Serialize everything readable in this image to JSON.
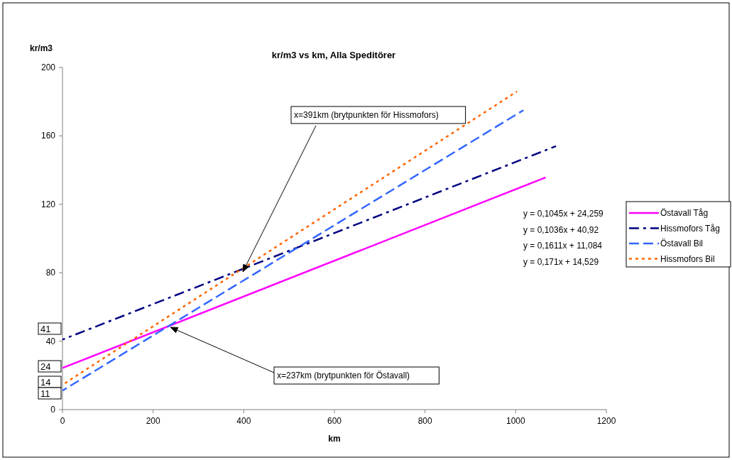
{
  "chart_data": {
    "type": "line",
    "title": "kr/m3 vs km, Alla Speditörer",
    "xlabel": "km",
    "ylabel": "kr/m3",
    "xlim": [
      0,
      1200
    ],
    "xticks": [
      0,
      200,
      400,
      600,
      800,
      1000,
      1200
    ],
    "ylim": [
      0,
      200
    ],
    "yticks": [
      0,
      40,
      80,
      120,
      160,
      200
    ],
    "grid": false,
    "legend": "right",
    "marker": "none",
    "series": [
      {
        "name": "Östavall Tåg",
        "color": "#ff00ff",
        "line_style": "solid",
        "x": [
          0,
          1066
        ],
        "values": [
          24.3,
          135.7
        ]
      },
      {
        "name": "Hissmofors Tåg",
        "color": "#000080",
        "line_style": "dashdot",
        "x": [
          0,
          1089
        ],
        "values": [
          40.9,
          154
        ]
      },
      {
        "name": "Östavall Bil",
        "color": "#3366ff",
        "line_style": "dashed",
        "x": [
          0,
          1017
        ],
        "values": [
          11.1,
          175
        ]
      },
      {
        "name": "Hissmofors Bil",
        "color": "#ff6600",
        "line_style": "dotted",
        "x": [
          0,
          1003
        ],
        "values": [
          14.5,
          186
        ]
      }
    ],
    "annotations": [
      "x=391km (brytpunkten för Hissmofors)",
      "x=237km (brytpunkten för Östavall)",
      "y = 0,1045x + 24,259",
      "y = 0,1036x + 40,92",
      "y = 0,1611x + 11,084",
      "y = 0,171x + 14,529",
      "41",
      "24",
      "14",
      "11"
    ]
  }
}
